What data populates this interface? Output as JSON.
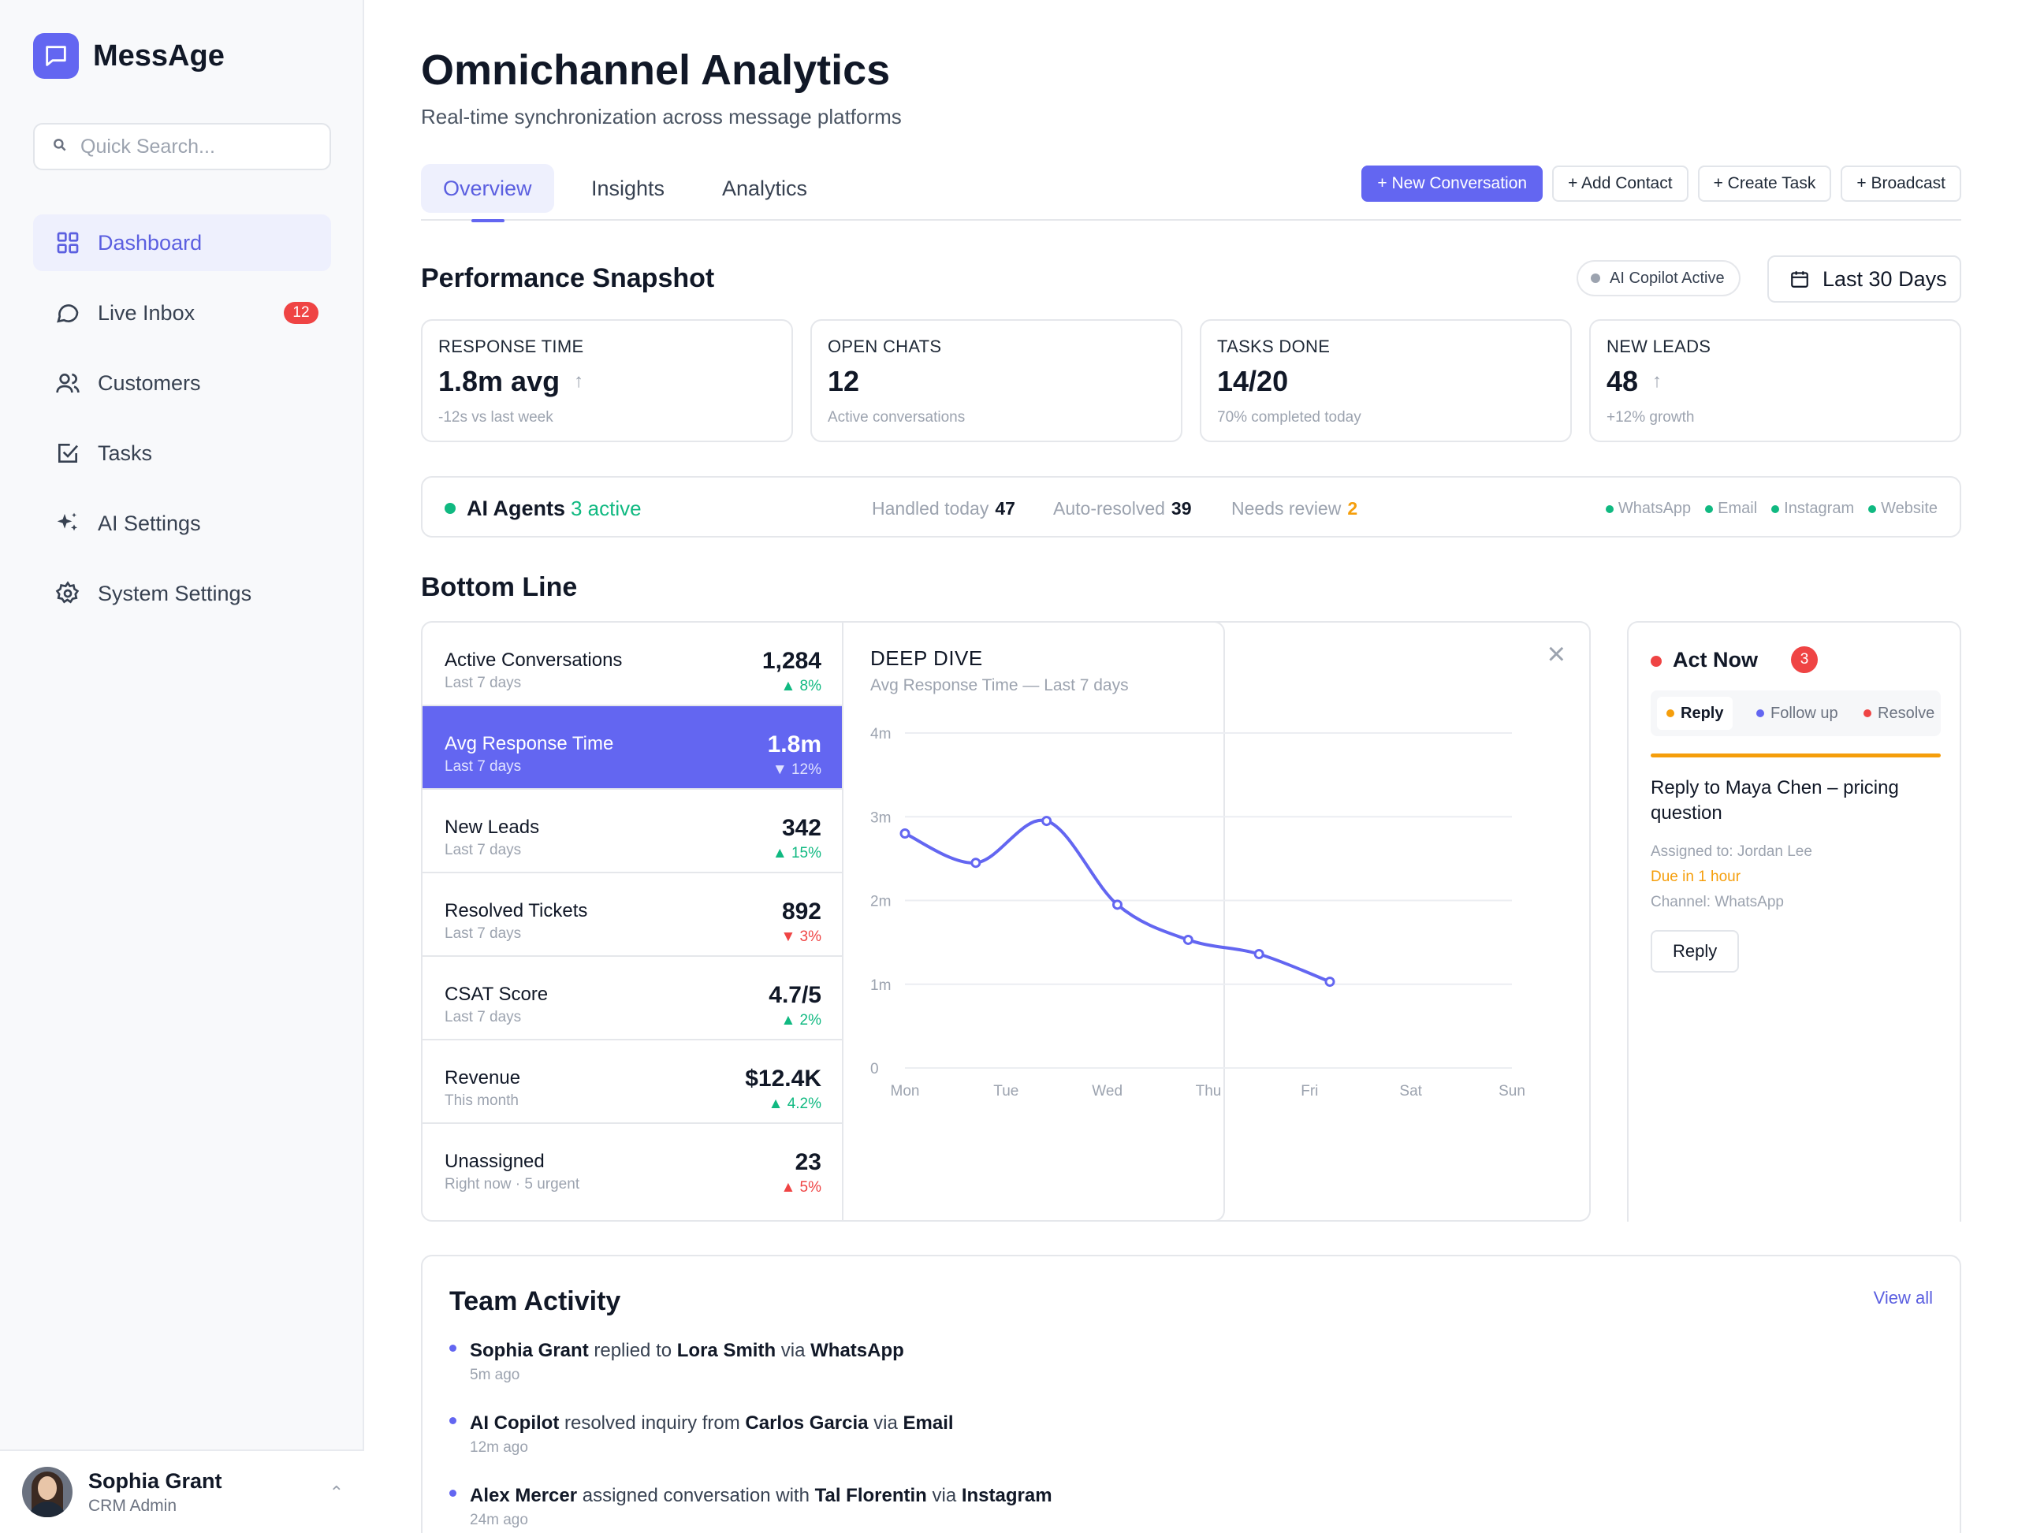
{
  "app": {
    "name": "MessAge"
  },
  "search": {
    "placeholder": "Quick Search..."
  },
  "nav": [
    {
      "label": "Dashboard",
      "icon": "grid-icon",
      "active": true
    },
    {
      "label": "Live Inbox",
      "icon": "chat-bubble-icon",
      "badge": "12"
    },
    {
      "label": "Customers",
      "icon": "users-icon"
    },
    {
      "label": "Tasks",
      "icon": "checkbox-icon"
    },
    {
      "label": "AI Settings",
      "icon": "sparkles-icon"
    },
    {
      "label": "System Settings",
      "icon": "gear-icon"
    }
  ],
  "user": {
    "name": "Sophia Grant",
    "role": "CRM Admin"
  },
  "header": {
    "title": "Omnichannel Analytics",
    "subtitle": "Real-time synchronization across message platforms"
  },
  "tabs": [
    "Overview",
    "Insights",
    "Analytics"
  ],
  "actions": [
    "+ New Conversation",
    "+ Add Contact",
    "+ Create Task",
    "+ Broadcast"
  ],
  "snapshot": {
    "title": "Performance Snapshot",
    "copilot": "AI Copilot Active",
    "range": "Last 30 Days",
    "kpis": [
      {
        "label": "RESPONSE TIME",
        "value": "1.8m avg",
        "note": "-12s vs last week",
        "trend": "up"
      },
      {
        "label": "OPEN CHATS",
        "value": "12",
        "note": "Active conversations"
      },
      {
        "label": "TASKS DONE",
        "value": "14/20",
        "note": "70% completed today"
      },
      {
        "label": "NEW LEADS",
        "value": "48",
        "note": "+12% growth",
        "trend": "up"
      }
    ]
  },
  "agents": {
    "title": "AI Agents",
    "active": "3 active",
    "handled_label": "Handled today",
    "handled": "47",
    "auto_label": "Auto-resolved",
    "auto": "39",
    "review_label": "Needs review",
    "review": "2",
    "channels": [
      "WhatsApp",
      "Email",
      "Instagram",
      "Website"
    ]
  },
  "bottom": {
    "title": "Bottom Line",
    "metrics": [
      {
        "name": "Active Conversations",
        "period": "Last 7 days",
        "value": "1,284",
        "change": "▲ 8%",
        "dir": "up"
      },
      {
        "name": "Avg Response Time",
        "period": "Last 7 days",
        "value": "1.8m",
        "change": "▼ 12%",
        "dir": "down",
        "selected": true
      },
      {
        "name": "New Leads",
        "period": "Last 7 days",
        "value": "342",
        "change": "▲ 15%",
        "dir": "up"
      },
      {
        "name": "Resolved Tickets",
        "period": "Last 7 days",
        "value": "892",
        "change": "▼ 3%",
        "dir": "down"
      },
      {
        "name": "CSAT Score",
        "period": "Last 7 days",
        "value": "4.7/5",
        "change": "▲ 2%",
        "dir": "up"
      },
      {
        "name": "Revenue",
        "period": "This month",
        "value": "$12.4K",
        "change": "▲ 4.2%",
        "dir": "up"
      },
      {
        "name": "Unassigned",
        "period": "Right now · 5 urgent",
        "value": "23",
        "change": "▲ 5%",
        "dir": "down"
      }
    ]
  },
  "dive": {
    "title": "DEEP DIVE",
    "subtitle": "Avg Response Time — Last 7 days"
  },
  "chart_data": {
    "type": "line",
    "categories": [
      "Mon",
      "Tue",
      "Wed",
      "Thu",
      "Fri",
      "Sat",
      "Sun"
    ],
    "x": [
      0,
      0.7,
      1.4,
      2.1,
      2.8,
      3.5,
      4.2
    ],
    "series": [
      {
        "values": [
          2.8,
          2.45,
          2.95,
          1.95,
          1.53,
          1.36,
          1.03
        ]
      }
    ],
    "y_ticks": [
      "0",
      "1m",
      "2m",
      "3m",
      "4m"
    ],
    "ylim": [
      0,
      4
    ],
    "grid": true,
    "color": "#6366f1"
  },
  "actnow": {
    "title": "Act Now",
    "badge": "3",
    "tabs": [
      "Reply",
      "Follow up",
      "Resolve"
    ],
    "task": "Reply to Maya Chen – pricing question",
    "assigned": "Assigned to: Jordan Lee",
    "due": "Due in 1 hour",
    "channel": "Channel: WhatsApp",
    "reply": "Reply"
  },
  "team": {
    "title": "Team Activity",
    "view_all": "View all",
    "events": [
      {
        "actor": "Sophia Grant",
        "verb": "replied to",
        "target": "Lora Smith",
        "via": "via",
        "channel": "WhatsApp",
        "time": "5m ago"
      },
      {
        "actor": "AI Copilot",
        "verb": "resolved inquiry from",
        "target": "Carlos Garcia",
        "via": "via",
        "channel": "Email",
        "time": "12m ago"
      },
      {
        "actor": "Alex Mercer",
        "verb": "assigned conversation with",
        "target": "Tal Florentin",
        "via": "via",
        "channel": "Instagram",
        "time": "24m ago"
      }
    ]
  }
}
